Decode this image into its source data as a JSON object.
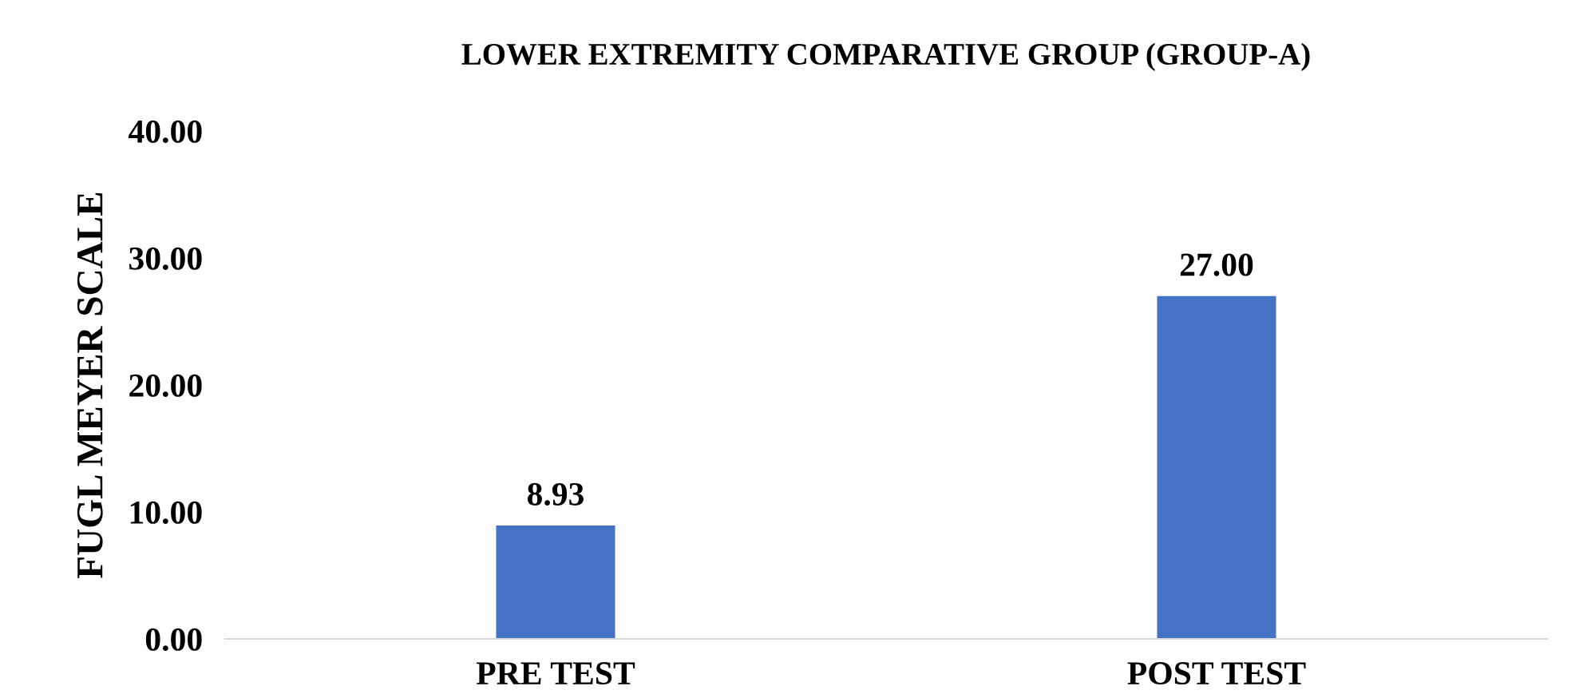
{
  "chart_data": {
    "type": "bar",
    "title": "LOWER EXTREMITY COMPARATIVE GROUP (GROUP-A)",
    "ylabel": "FUGL MEYER SCALE",
    "categories": [
      "PRE TEST",
      "POST TEST"
    ],
    "values": [
      8.93,
      27.0
    ],
    "color": "#4472c4",
    "value_labels": [
      "8.93",
      "27.00"
    ],
    "ylim": [
      0,
      40
    ],
    "yticks": [
      {
        "value": 0,
        "label": "0.00"
      },
      {
        "value": 10,
        "label": "10.00"
      },
      {
        "value": 20,
        "label": "20.00"
      },
      {
        "value": 30,
        "label": "30.00"
      },
      {
        "value": 40,
        "label": "40.00"
      }
    ],
    "grid": false,
    "legend": false
  }
}
